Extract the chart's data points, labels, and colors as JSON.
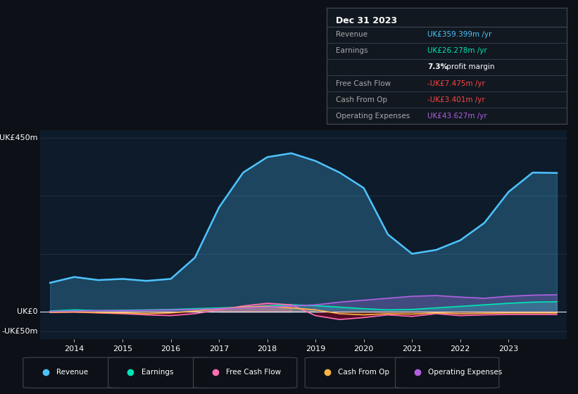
{
  "background_color": "#0d1117",
  "plot_bg_color": "#0d1b2a",
  "years": [
    2013.5,
    2014.0,
    2014.5,
    2015.0,
    2015.5,
    2016.0,
    2016.5,
    2017.0,
    2017.5,
    2018.0,
    2018.5,
    2019.0,
    2019.5,
    2020.0,
    2020.5,
    2021.0,
    2021.5,
    2022.0,
    2022.5,
    2023.0,
    2023.5,
    2024.0
  ],
  "revenue": [
    75,
    90,
    82,
    85,
    80,
    85,
    140,
    270,
    360,
    400,
    410,
    390,
    360,
    320,
    200,
    150,
    160,
    185,
    230,
    310,
    360,
    359
  ],
  "earnings": [
    2,
    5,
    3,
    4,
    5,
    6,
    8,
    10,
    12,
    15,
    18,
    16,
    12,
    8,
    5,
    6,
    10,
    14,
    18,
    22,
    25,
    26
  ],
  "free_cash_flow": [
    -2,
    -1,
    -3,
    -5,
    -8,
    -10,
    -5,
    5,
    15,
    22,
    18,
    -10,
    -20,
    -15,
    -8,
    -12,
    -5,
    -10,
    -8,
    -7,
    -7,
    -7
  ],
  "cash_from_op": [
    -1,
    0,
    -2,
    -3,
    -5,
    -3,
    2,
    8,
    12,
    14,
    10,
    5,
    -5,
    -8,
    -5,
    -6,
    -3,
    -5,
    -4,
    -3,
    -3,
    -3
  ],
  "operating_expenses": [
    1,
    2,
    3,
    3,
    4,
    5,
    6,
    8,
    10,
    12,
    15,
    18,
    25,
    30,
    35,
    40,
    42,
    38,
    35,
    40,
    43,
    44
  ],
  "revenue_color": "#4dc3ff",
  "earnings_color": "#00e5b3",
  "free_cash_flow_color": "#ff6eb4",
  "cash_from_op_color": "#ffb347",
  "operating_expenses_color": "#b060e0",
  "ylim": [
    -70,
    470
  ],
  "xlim": [
    2013.3,
    2024.2
  ],
  "xticks": [
    2014,
    2015,
    2016,
    2017,
    2018,
    2019,
    2020,
    2021,
    2022,
    2023
  ],
  "ytick_values": [
    450,
    0,
    -50
  ],
  "ytick_labels": [
    "UK£450m",
    "UK£0",
    "-UK£50m"
  ],
  "grid_lines": [
    450,
    300,
    150,
    0,
    -50
  ],
  "info_box": {
    "title": "Dec 31 2023",
    "rows": [
      {
        "label": "Revenue",
        "value": "UK£359.399m /yr",
        "value_color": "#4dc3ff",
        "bold_part": ""
      },
      {
        "label": "Earnings",
        "value": "UK£26.278m /yr",
        "value_color": "#00e5b3",
        "bold_part": ""
      },
      {
        "label": "",
        "value": "7.3% profit margin",
        "value_color": "#ffffff",
        "bold_part": "7.3%"
      },
      {
        "label": "Free Cash Flow",
        "value": "-UK£7.475m /yr",
        "value_color": "#ff4444",
        "bold_part": ""
      },
      {
        "label": "Cash From Op",
        "value": "-UK£3.401m /yr",
        "value_color": "#ff4444",
        "bold_part": ""
      },
      {
        "label": "Operating Expenses",
        "value": "UK£43.627m /yr",
        "value_color": "#b060e0",
        "bold_part": ""
      }
    ]
  },
  "legend_items": [
    {
      "label": "Revenue",
      "color": "#4dc3ff"
    },
    {
      "label": "Earnings",
      "color": "#00e5b3"
    },
    {
      "label": "Free Cash Flow",
      "color": "#ff6eb4"
    },
    {
      "label": "Cash From Op",
      "color": "#ffb347"
    },
    {
      "label": "Operating Expenses",
      "color": "#b060e0"
    }
  ]
}
